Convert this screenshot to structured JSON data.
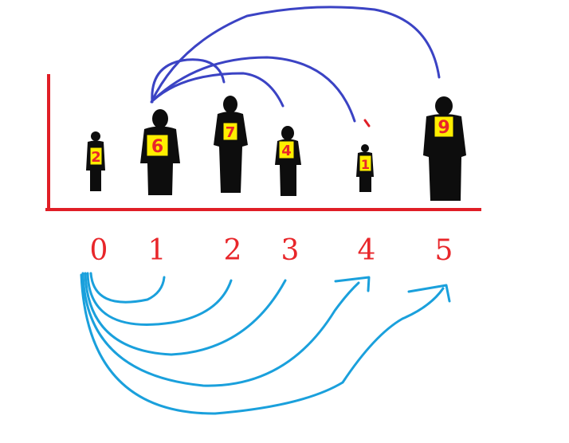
{
  "colors": {
    "axis": "#e01e26",
    "index_label": "#e8262a",
    "silhouette": "#0d0d0d",
    "badge_fill": "#ffee00",
    "badge_text": "#e8262a",
    "arrow_top": "#3b43c4",
    "arrow_bottom": "#1aa0dc"
  },
  "people": [
    {
      "index": "0",
      "value": "2"
    },
    {
      "index": "1",
      "value": "6"
    },
    {
      "index": "2",
      "value": "7"
    },
    {
      "index": "3",
      "value": "4"
    },
    {
      "index": "4",
      "value": "1"
    },
    {
      "index": "5",
      "value": "9"
    }
  ]
}
